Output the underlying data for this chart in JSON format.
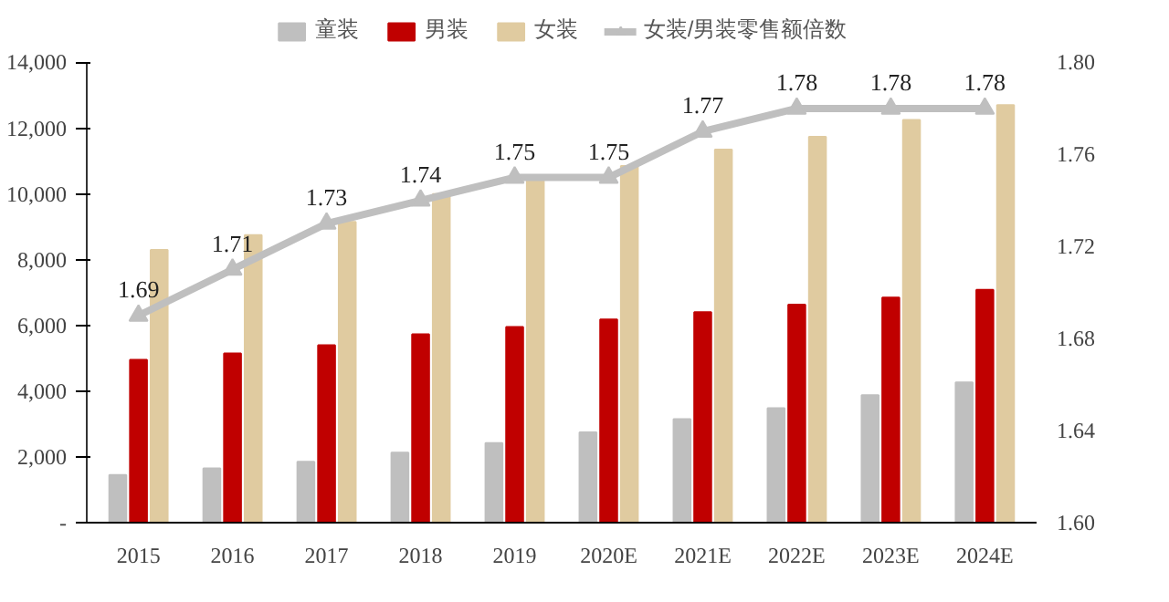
{
  "chart_data": {
    "type": "bar",
    "categories": [
      "2015",
      "2016",
      "2017",
      "2018",
      "2019",
      "2020E",
      "2021E",
      "2022E",
      "2023E",
      "2024E"
    ],
    "series": [
      {
        "name": "童装",
        "color": "#bfbfbf",
        "values": [
          1450,
          1650,
          1850,
          2130,
          2420,
          2750,
          3150,
          3480,
          3880,
          4270
        ]
      },
      {
        "name": "男装",
        "color": "#c00000",
        "values": [
          4950,
          5150,
          5400,
          5730,
          5950,
          6180,
          6400,
          6630,
          6850,
          7080
        ]
      },
      {
        "name": "女装",
        "color": "#e0cba0",
        "values": [
          8300,
          8750,
          9150,
          10000,
          10400,
          10850,
          11350,
          11740,
          12250,
          12700
        ]
      },
      {
        "name": "女装/男装零售额倍数",
        "type": "line",
        "axis": "y2",
        "color": "#bfbfbf",
        "marker": "triangle",
        "data_labels": true,
        "values": [
          1.69,
          1.71,
          1.73,
          1.74,
          1.75,
          1.75,
          1.77,
          1.78,
          1.78,
          1.78
        ]
      }
    ],
    "ylim": [
      0,
      14000
    ],
    "yticks": [
      {
        "value": 0,
        "label": "-"
      },
      {
        "value": 2000,
        "label": "2,000"
      },
      {
        "value": 4000,
        "label": "4,000"
      },
      {
        "value": 6000,
        "label": "6,000"
      },
      {
        "value": 8000,
        "label": "8,000"
      },
      {
        "value": 10000,
        "label": "10,000"
      },
      {
        "value": 12000,
        "label": "12,000"
      },
      {
        "value": 14000,
        "label": "14,000"
      }
    ],
    "y2lim": [
      1.6,
      1.8
    ],
    "y2ticks": [
      {
        "value": 1.6,
        "label": "1.60"
      },
      {
        "value": 1.64,
        "label": "1.64"
      },
      {
        "value": 1.68,
        "label": "1.68"
      },
      {
        "value": 1.72,
        "label": "1.72"
      },
      {
        "value": 1.76,
        "label": "1.76"
      },
      {
        "value": 1.8,
        "label": "1.80"
      }
    ],
    "legend": "top",
    "grid": false
  }
}
